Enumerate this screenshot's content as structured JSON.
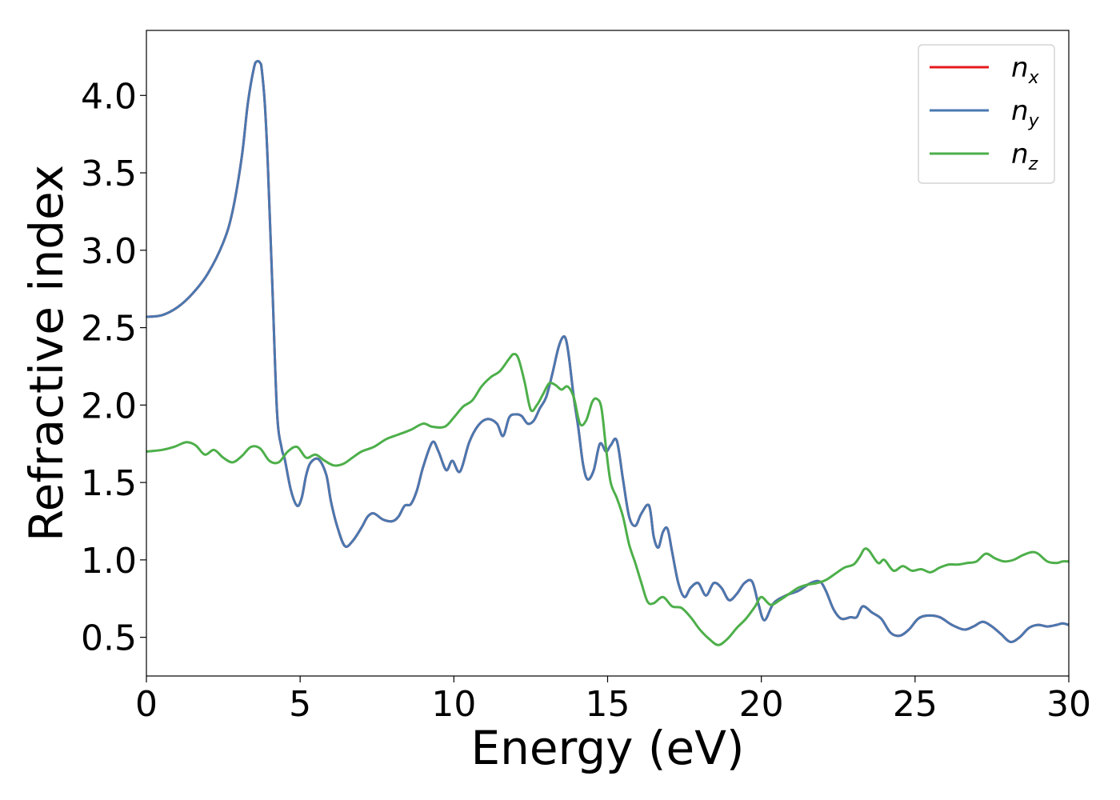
{
  "chart_data": {
    "type": "line",
    "title": "",
    "xlabel": "Energy (eV)",
    "ylabel": "Refractive index",
    "xlim": [
      0,
      30
    ],
    "ylim": [
      0.25,
      4.42
    ],
    "xticks": [
      0,
      5,
      10,
      15,
      20,
      25,
      30
    ],
    "xtick_labels": [
      "0",
      "5",
      "10",
      "15",
      "20",
      "25",
      "30"
    ],
    "yticks": [
      0.5,
      1.0,
      1.5,
      2.0,
      2.5,
      3.0,
      3.5,
      4.0
    ],
    "ytick_labels": [
      "0.5",
      "1.0",
      "1.5",
      "2.0",
      "2.5",
      "3.0",
      "3.5",
      "4.0"
    ],
    "grid": false,
    "legend_position": "top-right",
    "series": [
      {
        "name": "n",
        "subscript": "x",
        "color": "#e41a1c",
        "x": [
          0,
          0.5,
          1.0,
          1.5,
          2.0,
          2.5,
          2.8,
          3.1,
          3.3,
          3.5,
          3.6,
          3.7,
          3.75,
          3.85,
          3.95,
          4.1,
          4.25,
          4.4,
          4.5,
          4.7,
          4.9,
          5.05,
          5.2,
          5.35,
          5.6,
          5.85,
          6.0,
          6.2,
          6.45,
          6.7,
          7.0,
          7.2,
          7.4,
          7.7,
          8.0,
          8.2,
          8.4,
          8.6,
          8.8,
          9.0,
          9.3,
          9.5,
          9.75,
          9.95,
          10.2,
          10.5,
          10.8,
          11.1,
          11.4,
          11.6,
          11.8,
          12.0,
          12.2,
          12.4,
          12.6,
          12.8,
          13.0,
          13.2,
          13.4,
          13.55,
          13.65,
          13.75,
          13.9,
          14.05,
          14.2,
          14.35,
          14.55,
          14.75,
          14.95,
          15.1,
          15.3,
          15.5,
          15.7,
          15.9,
          16.1,
          16.35,
          16.5,
          16.65,
          16.8,
          16.95,
          17.1,
          17.3,
          17.5,
          17.7,
          17.95,
          18.2,
          18.45,
          18.7,
          18.95,
          19.2,
          19.45,
          19.7,
          19.9,
          20.1,
          20.4,
          20.8,
          21.2,
          21.6,
          21.9,
          22.1,
          22.35,
          22.6,
          22.9,
          23.1,
          23.3,
          23.6,
          23.9,
          24.2,
          24.5,
          24.8,
          25.1,
          25.4,
          25.8,
          26.2,
          26.6,
          26.9,
          27.2,
          27.5,
          27.8,
          28.1,
          28.4,
          28.7,
          29.0,
          29.3,
          29.6,
          29.8,
          30.0
        ],
        "y": [
          2.57,
          2.58,
          2.63,
          2.72,
          2.85,
          3.05,
          3.25,
          3.6,
          3.95,
          4.18,
          4.22,
          4.21,
          4.17,
          3.95,
          3.55,
          2.75,
          1.95,
          1.72,
          1.65,
          1.45,
          1.35,
          1.4,
          1.55,
          1.63,
          1.65,
          1.55,
          1.38,
          1.22,
          1.09,
          1.12,
          1.21,
          1.28,
          1.3,
          1.26,
          1.25,
          1.28,
          1.35,
          1.36,
          1.45,
          1.6,
          1.76,
          1.7,
          1.58,
          1.64,
          1.57,
          1.76,
          1.87,
          1.91,
          1.88,
          1.8,
          1.92,
          1.94,
          1.93,
          1.88,
          1.9,
          1.98,
          2.05,
          2.2,
          2.37,
          2.44,
          2.42,
          2.3,
          2.05,
          1.85,
          1.62,
          1.52,
          1.58,
          1.75,
          1.7,
          1.74,
          1.77,
          1.52,
          1.28,
          1.22,
          1.3,
          1.35,
          1.15,
          1.08,
          1.18,
          1.2,
          1.05,
          0.85,
          0.76,
          0.82,
          0.85,
          0.77,
          0.85,
          0.82,
          0.74,
          0.78,
          0.85,
          0.86,
          0.72,
          0.61,
          0.72,
          0.77,
          0.8,
          0.85,
          0.86,
          0.8,
          0.68,
          0.62,
          0.63,
          0.63,
          0.7,
          0.66,
          0.62,
          0.53,
          0.51,
          0.55,
          0.62,
          0.64,
          0.63,
          0.58,
          0.55,
          0.57,
          0.6,
          0.57,
          0.52,
          0.47,
          0.5,
          0.56,
          0.58,
          0.57,
          0.58,
          0.59,
          0.58
        ]
      },
      {
        "name": "n",
        "subscript": "y",
        "color": "#4a78b0",
        "x": [
          0,
          0.5,
          1.0,
          1.5,
          2.0,
          2.5,
          2.8,
          3.1,
          3.3,
          3.5,
          3.6,
          3.7,
          3.75,
          3.85,
          3.95,
          4.1,
          4.25,
          4.4,
          4.5,
          4.7,
          4.9,
          5.05,
          5.2,
          5.35,
          5.6,
          5.85,
          6.0,
          6.2,
          6.45,
          6.7,
          7.0,
          7.2,
          7.4,
          7.7,
          8.0,
          8.2,
          8.4,
          8.6,
          8.8,
          9.0,
          9.3,
          9.5,
          9.75,
          9.95,
          10.2,
          10.5,
          10.8,
          11.1,
          11.4,
          11.6,
          11.8,
          12.0,
          12.2,
          12.4,
          12.6,
          12.8,
          13.0,
          13.2,
          13.4,
          13.55,
          13.65,
          13.75,
          13.9,
          14.05,
          14.2,
          14.35,
          14.55,
          14.75,
          14.95,
          15.1,
          15.3,
          15.5,
          15.7,
          15.9,
          16.1,
          16.35,
          16.5,
          16.65,
          16.8,
          16.95,
          17.1,
          17.3,
          17.5,
          17.7,
          17.95,
          18.2,
          18.45,
          18.7,
          18.95,
          19.2,
          19.45,
          19.7,
          19.9,
          20.1,
          20.4,
          20.8,
          21.2,
          21.6,
          21.9,
          22.1,
          22.35,
          22.6,
          22.9,
          23.1,
          23.3,
          23.6,
          23.9,
          24.2,
          24.5,
          24.8,
          25.1,
          25.4,
          25.8,
          26.2,
          26.6,
          26.9,
          27.2,
          27.5,
          27.8,
          28.1,
          28.4,
          28.7,
          29.0,
          29.3,
          29.6,
          29.8,
          30.0
        ],
        "y": [
          2.57,
          2.58,
          2.63,
          2.72,
          2.85,
          3.05,
          3.25,
          3.6,
          3.95,
          4.18,
          4.22,
          4.21,
          4.17,
          3.95,
          3.55,
          2.75,
          1.95,
          1.72,
          1.65,
          1.45,
          1.35,
          1.4,
          1.55,
          1.63,
          1.65,
          1.55,
          1.38,
          1.22,
          1.09,
          1.12,
          1.21,
          1.28,
          1.3,
          1.26,
          1.25,
          1.28,
          1.35,
          1.36,
          1.45,
          1.6,
          1.76,
          1.7,
          1.58,
          1.64,
          1.57,
          1.76,
          1.87,
          1.91,
          1.88,
          1.8,
          1.92,
          1.94,
          1.93,
          1.88,
          1.9,
          1.98,
          2.05,
          2.2,
          2.37,
          2.44,
          2.42,
          2.3,
          2.05,
          1.85,
          1.62,
          1.52,
          1.58,
          1.75,
          1.7,
          1.74,
          1.77,
          1.52,
          1.28,
          1.22,
          1.3,
          1.35,
          1.15,
          1.08,
          1.18,
          1.2,
          1.05,
          0.85,
          0.76,
          0.82,
          0.85,
          0.77,
          0.85,
          0.82,
          0.74,
          0.78,
          0.85,
          0.86,
          0.72,
          0.61,
          0.72,
          0.77,
          0.8,
          0.85,
          0.86,
          0.8,
          0.68,
          0.62,
          0.63,
          0.63,
          0.7,
          0.66,
          0.62,
          0.53,
          0.51,
          0.55,
          0.62,
          0.64,
          0.63,
          0.58,
          0.55,
          0.57,
          0.6,
          0.57,
          0.52,
          0.47,
          0.5,
          0.56,
          0.58,
          0.57,
          0.58,
          0.59,
          0.58
        ]
      },
      {
        "name": "n",
        "subscript": "z",
        "color": "#4daf4a",
        "x": [
          0,
          0.5,
          0.9,
          1.3,
          1.6,
          1.9,
          2.2,
          2.5,
          2.8,
          3.1,
          3.4,
          3.7,
          4.0,
          4.3,
          4.6,
          4.9,
          5.2,
          5.5,
          5.8,
          6.1,
          6.4,
          6.7,
          7.0,
          7.4,
          7.8,
          8.2,
          8.6,
          9.0,
          9.3,
          9.7,
          10.0,
          10.3,
          10.6,
          10.9,
          11.2,
          11.5,
          11.8,
          11.95,
          12.1,
          12.3,
          12.5,
          12.7,
          12.9,
          13.1,
          13.3,
          13.5,
          13.7,
          13.9,
          14.1,
          14.3,
          14.5,
          14.65,
          14.8,
          14.95,
          15.1,
          15.3,
          15.5,
          15.7,
          15.9,
          16.1,
          16.3,
          16.5,
          16.8,
          17.1,
          17.4,
          17.7,
          18.0,
          18.3,
          18.6,
          18.9,
          19.2,
          19.5,
          19.8,
          20.0,
          20.3,
          20.6,
          20.9,
          21.2,
          21.5,
          21.8,
          22.1,
          22.4,
          22.7,
          23.0,
          23.2,
          23.35,
          23.5,
          23.8,
          24.0,
          24.3,
          24.6,
          24.9,
          25.2,
          25.5,
          25.8,
          26.1,
          26.4,
          26.7,
          27.0,
          27.3,
          27.6,
          27.9,
          28.2,
          28.5,
          28.8,
          29.0,
          29.3,
          29.6,
          29.8,
          30.0
        ],
        "y": [
          1.7,
          1.71,
          1.73,
          1.76,
          1.74,
          1.68,
          1.71,
          1.66,
          1.63,
          1.67,
          1.73,
          1.72,
          1.64,
          1.63,
          1.7,
          1.73,
          1.66,
          1.68,
          1.64,
          1.61,
          1.62,
          1.66,
          1.7,
          1.73,
          1.78,
          1.81,
          1.84,
          1.88,
          1.86,
          1.86,
          1.92,
          1.99,
          2.03,
          2.12,
          2.18,
          2.22,
          2.3,
          2.33,
          2.3,
          2.15,
          1.97,
          2.0,
          2.07,
          2.14,
          2.13,
          2.1,
          2.12,
          2.05,
          1.88,
          1.9,
          2.02,
          2.04,
          1.98,
          1.72,
          1.5,
          1.4,
          1.28,
          1.1,
          0.98,
          0.85,
          0.73,
          0.72,
          0.76,
          0.7,
          0.69,
          0.63,
          0.55,
          0.49,
          0.45,
          0.49,
          0.56,
          0.62,
          0.7,
          0.76,
          0.71,
          0.74,
          0.78,
          0.82,
          0.84,
          0.85,
          0.87,
          0.91,
          0.95,
          0.97,
          1.02,
          1.07,
          1.06,
          0.98,
          1.0,
          0.93,
          0.96,
          0.93,
          0.94,
          0.92,
          0.95,
          0.97,
          0.97,
          0.98,
          0.99,
          1.04,
          1.01,
          0.99,
          1.0,
          1.03,
          1.05,
          1.04,
          0.99,
          0.98,
          0.99,
          0.99
        ]
      }
    ]
  }
}
